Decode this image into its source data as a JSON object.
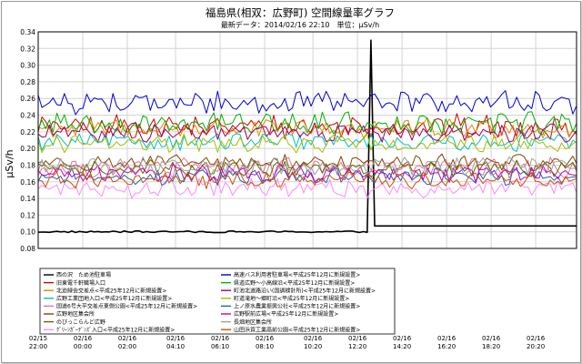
{
  "chart_data": {
    "type": "line",
    "title": "福島県(相双：広野町) 空間線量率グラフ",
    "subtitle": "最新データ：2014/02/16 22:10　単位：μSv/h",
    "ylabel": "μSv/h",
    "xlabel": "",
    "ylim": [
      0.08,
      0.34
    ],
    "yticks": [
      0.08,
      0.1,
      0.12,
      0.14,
      0.16,
      0.18,
      0.2,
      0.22,
      0.24,
      0.26,
      0.28,
      0.3,
      0.32,
      0.34
    ],
    "ytick_labels": [
      "0.08",
      "0.10",
      "0.12",
      "0.14",
      "0.16",
      "0.18",
      "0.20",
      "0.22",
      "0.24",
      "0.26",
      "0.28",
      "0.30",
      "0.32",
      "0.34"
    ],
    "grid": true,
    "x_start": "2014/02/15 22:00",
    "x_end": "2014/02/16 22:10",
    "x_ticks": [
      {
        "date": "02/15",
        "time": "22:00"
      },
      {
        "date": "02/16",
        "time": "00:00"
      },
      {
        "date": "02/16",
        "time": "02:00"
      },
      {
        "date": "02/16",
        "time": "04:10"
      },
      {
        "date": "02/16",
        "time": "06:10"
      },
      {
        "date": "02/16",
        "time": "08:10"
      },
      {
        "date": "02/16",
        "time": "10:20"
      },
      {
        "date": "02/16",
        "time": "12:20"
      },
      {
        "date": "02/16",
        "time": "14:20"
      },
      {
        "date": "02/16",
        "time": "16:20"
      },
      {
        "date": "02/16",
        "time": "18:20"
      },
      {
        "date": "02/16",
        "time": "20:20"
      }
    ],
    "series": [
      {
        "name": "西の沢　ため池駐車場",
        "color": "#000000",
        "level": 0.107,
        "noise": 0.001
      },
      {
        "name": "旧東電千軒職場入口",
        "color": "#d40000",
        "level": 0.226,
        "noise": 0.012
      },
      {
        "name": "北迫緑会交差点<平成25年12月に新規設置>",
        "color": "#e08a00",
        "level": 0.224,
        "noise": 0.01
      },
      {
        "name": "広野工業団地入口<平成25年12月に新規設置>",
        "color": "#00c0c0",
        "level": 0.208,
        "noise": 0.009
      },
      {
        "name": "国道6号大平交差点東側公園<平成25年12月に新規設置>",
        "color": "#f07090",
        "level": 0.176,
        "noise": 0.01
      },
      {
        "name": "広野地区集会所",
        "color": "#884400",
        "level": 0.183,
        "noise": 0.008
      },
      {
        "name": "のびっこらんど広野",
        "color": "#666600",
        "level": 0.176,
        "noise": 0.008
      },
      {
        "name": "ｸﾞﾘｰﾝｶﾞｰﾃﾞﾝｽﾞ入口<平成25年12月に新規設置>",
        "color": "#ff88ff",
        "level": 0.152,
        "noise": 0.009
      },
      {
        "name": "高速バス利用者駐車場<平成25年12月に新規設置>",
        "color": "#0000d0",
        "level": 0.255,
        "noise": 0.011
      },
      {
        "name": "県道広野～小高線沿<平成25年12月に新規設置>",
        "color": "#00b000",
        "level": 0.23,
        "noise": 0.011
      },
      {
        "name": "町池北道路沿い(国調検針所)<平成25年12月に新規設置>",
        "color": "#a00060",
        "level": 0.219,
        "noise": 0.009
      },
      {
        "name": "町道滝地～郷町沿<平成25年12月に新規設置>",
        "color": "#a0c000",
        "level": 0.206,
        "noise": 0.009
      },
      {
        "name": "上ノ原水農業振興公社<平成25年12月に新規設置>",
        "color": "#2060b0",
        "level": 0.166,
        "noise": 0.008
      },
      {
        "name": "広野駅前広場<平成25年12月に新規設置>",
        "color": "#c000c0",
        "level": 0.17,
        "noise": 0.009
      },
      {
        "name": "長畑地区集会所",
        "color": "#a0a0a0",
        "level": 0.178,
        "noise": 0.009
      },
      {
        "name": "山田浜資工業高前公園<平成25年12月に新規設置>",
        "color": "#d05000",
        "level": 0.162,
        "noise": 0.008
      }
    ],
    "spike": {
      "series": 0,
      "time": "2014/02/16 13:00",
      "value": 0.33
    },
    "legend": {
      "placement": "bottom",
      "columns": 2
    }
  }
}
